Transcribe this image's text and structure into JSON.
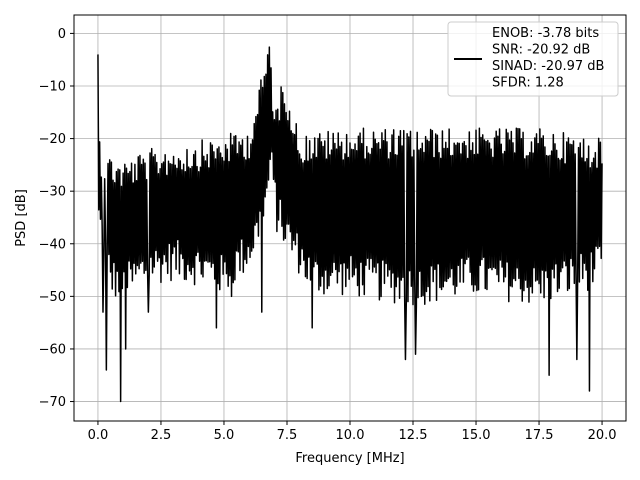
{
  "chart_data": {
    "type": "line",
    "title": "",
    "xlabel": "Frequency [MHz]",
    "ylabel": "PSD [dB]",
    "xlim": [
      -0.95,
      20.95
    ],
    "ylim": [
      -73.7,
      3.5
    ],
    "x_ticks": [
      0.0,
      2.5,
      5.0,
      7.5,
      10.0,
      12.5,
      15.0,
      17.5,
      20.0
    ],
    "x_tick_labels": [
      "0.0",
      "2.5",
      "5.0",
      "7.5",
      "10.0",
      "12.5",
      "15.0",
      "17.5",
      "20.0"
    ],
    "y_ticks": [
      0,
      -10,
      -20,
      -30,
      -40,
      -50,
      -60,
      -70
    ],
    "y_tick_labels": [
      "0",
      "−10",
      "−20",
      "−30",
      "−40",
      "−50",
      "−60",
      "−70"
    ],
    "grid": true,
    "legend_position": "top-right",
    "line_color": "#000000",
    "legend_lines": [
      "ENOB: -3.78 bits",
      "SNR: -20.92 dB",
      "SINAD: -20.97 dB",
      "SFDR: 1.28"
    ],
    "series": [
      {
        "x_range": [
          0,
          20
        ],
        "points": 600,
        "baseline_mean": -30,
        "peak_envelope": [
          [
            0.0,
            -4
          ],
          [
            0.02,
            -17
          ],
          [
            0.15,
            -22
          ],
          [
            0.5,
            -23
          ],
          [
            1.0,
            -24
          ],
          [
            2.0,
            -22
          ],
          [
            3.0,
            -21
          ],
          [
            4.5,
            -20
          ],
          [
            6.0,
            -18
          ],
          [
            6.3,
            -12
          ],
          [
            6.6,
            -6
          ],
          [
            6.8,
            0
          ],
          [
            7.0,
            -14
          ],
          [
            7.4,
            -8
          ],
          [
            7.6,
            -12
          ],
          [
            8.0,
            -19
          ],
          [
            10.0,
            -18
          ],
          [
            12.5,
            -18
          ],
          [
            15.0,
            -18
          ],
          [
            17.5,
            -18
          ],
          [
            20.0,
            -20
          ]
        ],
        "notable_minima": [
          [
            0.2,
            -53
          ],
          [
            0.35,
            -64
          ],
          [
            0.9,
            -70
          ],
          [
            1.1,
            -60
          ],
          [
            2.0,
            -53
          ],
          [
            4.7,
            -56
          ],
          [
            5.3,
            -50
          ],
          [
            6.5,
            -53
          ],
          [
            8.5,
            -56
          ],
          [
            12.2,
            -62
          ],
          [
            12.6,
            -61
          ],
          [
            17.9,
            -65
          ],
          [
            19.0,
            -62
          ],
          [
            19.5,
            -68
          ]
        ],
        "trough_envelope": [
          [
            0.0,
            -38
          ],
          [
            0.5,
            -50
          ],
          [
            1.0,
            -52
          ],
          [
            2.0,
            -48
          ],
          [
            3.0,
            -47
          ],
          [
            4.0,
            -48
          ],
          [
            5.0,
            -50
          ],
          [
            6.0,
            -45
          ],
          [
            6.6,
            -38
          ],
          [
            6.85,
            -28
          ],
          [
            7.1,
            -38
          ],
          [
            7.5,
            -42
          ],
          [
            8.5,
            -50
          ],
          [
            10.0,
            -50
          ],
          [
            12.5,
            -52
          ],
          [
            15.0,
            -50
          ],
          [
            17.5,
            -52
          ],
          [
            20.0,
            -48
          ]
        ]
      }
    ]
  }
}
